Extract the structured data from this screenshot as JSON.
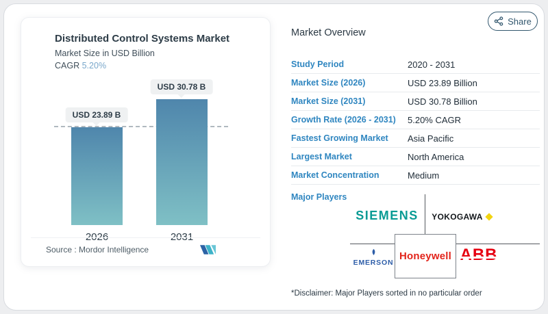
{
  "share_button": {
    "label": "Share"
  },
  "chart_panel": {
    "title": "Distributed Control Systems Market",
    "subtitle": "Market Size in USD Billion",
    "cagr_label": "CAGR",
    "cagr_value": "5.20%",
    "source_label": "Source :",
    "source_name": "Mordor Intelligence"
  },
  "chart_data": {
    "type": "bar",
    "title": "Distributed Control Systems Market",
    "ylabel": "Market Size in USD Billion",
    "categories": [
      "2026",
      "2031"
    ],
    "values": [
      23.89,
      30.78
    ],
    "bar_value_labels": [
      "USD 23.89 B",
      "USD 30.78 B"
    ],
    "ylim": [
      0,
      30.78
    ],
    "grid": false,
    "legend": "none",
    "cagr_percent": "5.20%",
    "reference_line": {
      "value": 23.89,
      "style": "dashed"
    },
    "bar_color_top": "#4f86ac",
    "bar_color_bottom": "#7fc0c5"
  },
  "overview": {
    "title": "Market Overview",
    "rows": [
      {
        "label": "Study Period",
        "value": "2020 - 2031"
      },
      {
        "label": "Market Size (2026)",
        "value": "USD 23.89 Billion"
      },
      {
        "label": "Market Size (2031)",
        "value": "USD 30.78 Billion"
      },
      {
        "label": "Growth Rate (2026 - 2031)",
        "value": "5.20% CAGR"
      },
      {
        "label": "Fastest Growing Market",
        "value": "Asia Pacific"
      },
      {
        "label": "Largest Market",
        "value": "North America"
      },
      {
        "label": "Market Concentration",
        "value": "Medium"
      }
    ],
    "major_players_label": "Major Players",
    "players": [
      {
        "name": "SIEMENS",
        "color": "#089b94"
      },
      {
        "name": "YOKOGAWA",
        "color": "#14181c"
      },
      {
        "name": "EMERSON",
        "color": "#2d5da8"
      },
      {
        "name": "Honeywell",
        "color": "#e2231a"
      },
      {
        "name": "ABB",
        "color": "#e60012"
      }
    ],
    "yokogawa_diamond_color": "#f2d411",
    "disclaimer": "*Disclaimer: Major Players sorted in no particular order"
  },
  "icons": {
    "share": "share-nodes glyph (three connected dots)",
    "yokogawa_diamond": "yellow rotated square",
    "emerson_mark": "blue leaf mark",
    "mordor_logo": "blue and teal M monogram"
  }
}
